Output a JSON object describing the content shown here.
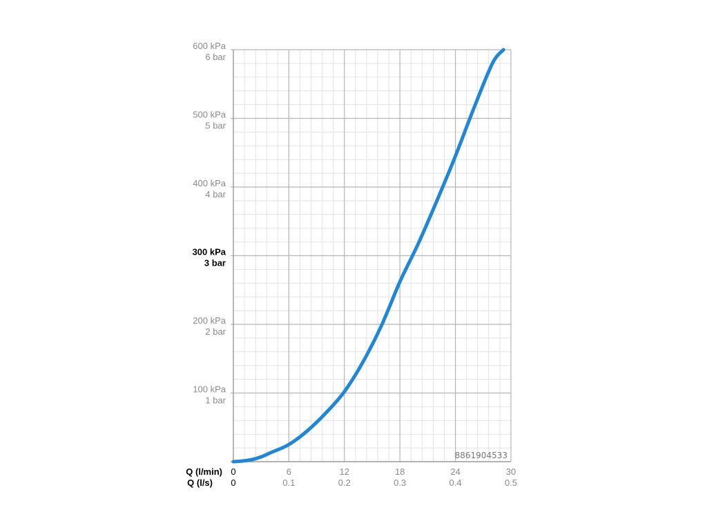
{
  "chart_data": {
    "type": "line",
    "x_axis_label_primary": "Q (l/min)",
    "x_axis_label_secondary": "Q (l/s)",
    "xlim": [
      0,
      30
    ],
    "ylim": [
      0,
      600
    ],
    "x_ticks": [
      {
        "lmin": "0",
        "ls": "0"
      },
      {
        "lmin": "6",
        "ls": "0.1"
      },
      {
        "lmin": "12",
        "ls": "0.2"
      },
      {
        "lmin": "18",
        "ls": "0.3"
      },
      {
        "lmin": "24",
        "ls": "0.4"
      },
      {
        "lmin": "30",
        "ls": "0.5"
      }
    ],
    "y_ticks": [
      {
        "value": 600,
        "kpa": "600 kPa",
        "bar": "6 bar",
        "bold": false
      },
      {
        "value": 500,
        "kpa": "500 kPa",
        "bar": "5 bar",
        "bold": false
      },
      {
        "value": 400,
        "kpa": "400 kPa",
        "bar": "4 bar",
        "bold": false
      },
      {
        "value": 300,
        "kpa": "300 kPa",
        "bar": "3 bar",
        "bold": true
      },
      {
        "value": 200,
        "kpa": "200 kPa",
        "bar": "2 bar",
        "bold": false
      },
      {
        "value": 100,
        "kpa": "100 kPa",
        "bar": "1 bar",
        "bold": false
      }
    ],
    "grid": true,
    "series": [
      {
        "color": "#1f87d6",
        "x": [
          0,
          1,
          2,
          3,
          4,
          6,
          8,
          10,
          12,
          14,
          16,
          18,
          20,
          22,
          24,
          26,
          28,
          29.2
        ],
        "y": [
          0,
          1,
          3,
          7,
          13,
          25,
          45,
          71,
          102,
          145,
          198,
          262,
          318,
          380,
          445,
          515,
          580,
          600
        ]
      }
    ],
    "annotation": "8861904533"
  }
}
